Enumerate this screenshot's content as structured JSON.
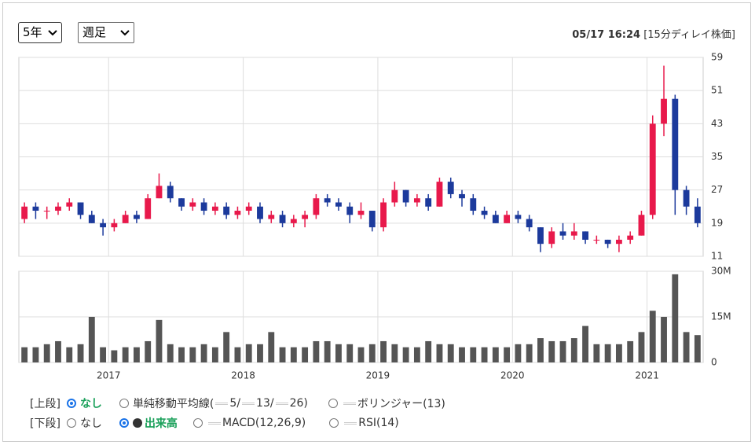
{
  "header": {
    "period": "5年",
    "interval": "週足",
    "timestamp": "05/17 16:24",
    "delay_note": "[15分ディレイ株価]"
  },
  "controls": {
    "upper_label": "[上段]",
    "upper_none": "なし",
    "sma": "単純移動平均線(",
    "sma_5": "5/",
    "sma_13": "13/",
    "sma_26": "26)",
    "bollinger": "ボリンジャー(13)",
    "lower_label": "[下段]",
    "lower_none": "なし",
    "volume": "出来高",
    "macd": "MACD(12,26,9)",
    "rsi": "RSI(14)"
  },
  "chart_data": {
    "type": "candlestick",
    "open": [
      20,
      23,
      22,
      22,
      23,
      24,
      21,
      19,
      18,
      19,
      21,
      20,
      25,
      28,
      25,
      23,
      24,
      22,
      23,
      21,
      22,
      23,
      20,
      21,
      19,
      20,
      21,
      25,
      24,
      23,
      21,
      22,
      18,
      24,
      27,
      24,
      25,
      23,
      29,
      26,
      25,
      22,
      21,
      19,
      21,
      20,
      18,
      14,
      17,
      16,
      17,
      15,
      15,
      14,
      15,
      16,
      21,
      43,
      49,
      27,
      23
    ],
    "high": [
      24,
      24,
      23,
      24,
      25,
      24,
      22,
      20,
      20,
      22,
      22,
      26,
      31,
      29,
      25,
      25,
      25,
      24,
      24,
      23,
      24,
      24,
      22,
      22,
      21,
      22,
      26,
      26,
      25,
      24,
      24,
      22,
      25,
      29,
      27,
      26,
      26,
      30,
      30,
      27,
      26,
      23,
      22,
      22,
      22,
      21,
      18,
      18,
      19,
      19,
      17,
      16,
      15,
      16,
      17,
      22,
      45,
      57,
      50,
      28,
      25
    ],
    "low": [
      19,
      20,
      20,
      21,
      22,
      20,
      19,
      16,
      17,
      19,
      19,
      20,
      25,
      24,
      22,
      22,
      21,
      21,
      20,
      20,
      21,
      19,
      19,
      18,
      18,
      18,
      20,
      23,
      22,
      19,
      20,
      17,
      17,
      23,
      23,
      23,
      22,
      23,
      25,
      23,
      21,
      20,
      19,
      19,
      19,
      17,
      12,
      13,
      15,
      15,
      14,
      14,
      13,
      12,
      14,
      16,
      20,
      40,
      21,
      21,
      18
    ],
    "close": [
      23,
      22,
      22,
      23,
      24,
      21,
      19,
      18,
      19,
      21,
      20,
      25,
      28,
      25,
      23,
      24,
      22,
      23,
      21,
      22,
      23,
      20,
      21,
      19,
      20,
      21,
      25,
      24,
      23,
      21,
      22,
      18,
      24,
      27,
      24,
      25,
      23,
      29,
      26,
      25,
      22,
      21,
      19,
      21,
      20,
      18,
      14,
      17,
      16,
      17,
      15,
      15,
      14,
      15,
      16,
      21,
      43,
      49,
      27,
      23,
      19
    ],
    "volume": [
      5000000,
      5000000,
      6000000,
      7000000,
      5000000,
      6000000,
      15000000,
      5000000,
      4000000,
      5000000,
      5000000,
      7000000,
      14000000,
      6000000,
      5000000,
      5000000,
      6000000,
      5000000,
      10000000,
      5000000,
      6000000,
      6000000,
      10000000,
      5000000,
      5000000,
      5000000,
      7000000,
      7000000,
      6000000,
      6000000,
      5000000,
      6000000,
      7000000,
      6000000,
      5000000,
      5000000,
      7000000,
      6000000,
      6000000,
      5000000,
      5000000,
      5000000,
      5000000,
      5000000,
      6000000,
      6000000,
      8000000,
      7000000,
      7000000,
      8000000,
      12000000,
      6000000,
      6000000,
      6000000,
      7000000,
      10000000,
      17000000,
      15000000,
      29000000,
      10000000,
      9000000
    ],
    "up_color": "#e8194b",
    "down_color": "#1c3a9c",
    "volume_color": "#555555",
    "xlim": [
      -0.5,
      60.5
    ],
    "xticks": [
      {
        "value": 7.5,
        "label": "2017"
      },
      {
        "value": 19.5,
        "label": "2018"
      },
      {
        "value": 31.5,
        "label": "2019"
      },
      {
        "value": 43.5,
        "label": "2020"
      },
      {
        "value": 55.5,
        "label": "2021"
      }
    ],
    "ylim": [
      11,
      59
    ],
    "yticks": [
      11,
      19,
      27,
      35,
      43,
      51,
      59
    ],
    "volume_ylim": [
      0,
      30000000
    ],
    "volume_yticks": [
      0,
      {
        "value": 15000000,
        "label": "15M"
      },
      {
        "value": 30000000,
        "label": "30M"
      }
    ],
    "grid": true
  }
}
